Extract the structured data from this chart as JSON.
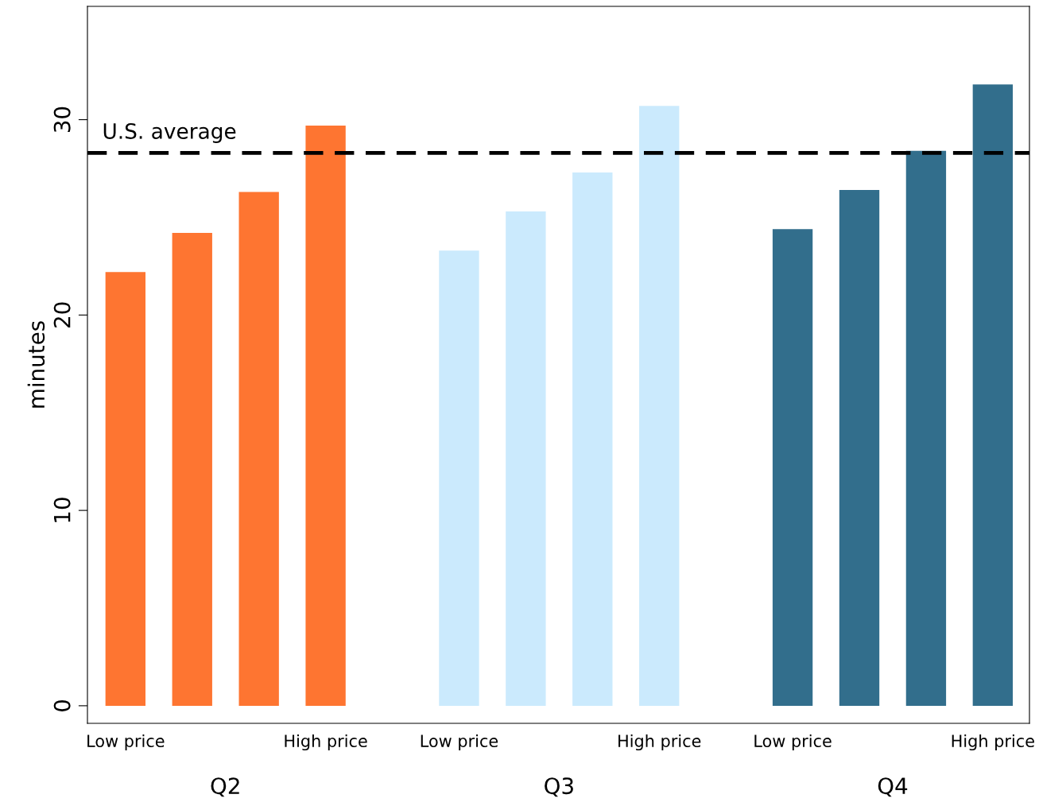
{
  "chart_data": {
    "type": "bar",
    "ylabel": "minutes",
    "categories": [
      "Low price",
      null,
      null,
      "High price",
      null,
      "Low price",
      null,
      null,
      "High price",
      null,
      "Low price",
      null,
      null,
      "High price"
    ],
    "series": [
      {
        "color": "#fe7531",
        "values": [
          22.2,
          24.2,
          26.3,
          29.7,
          null,
          null,
          null,
          null,
          null,
          null,
          null,
          null,
          null,
          null
        ]
      },
      {
        "color": "#cbeafd",
        "values": [
          null,
          null,
          null,
          null,
          null,
          23.3,
          25.3,
          27.3,
          30.7,
          null,
          null,
          null,
          null,
          null
        ]
      },
      {
        "color": "#326e8c",
        "values": [
          null,
          null,
          null,
          null,
          null,
          null,
          null,
          null,
          null,
          null,
          24.4,
          26.4,
          28.4,
          31.8
        ]
      }
    ],
    "ylim": [
      -0.9,
      35.8
    ],
    "yticks": [
      0,
      10,
      20,
      30
    ],
    "ref_lines": [
      {
        "axis": "y",
        "value": 28.3,
        "label": "U.S. average",
        "color": "#000000",
        "line_style": "dashed"
      }
    ],
    "annotations": [
      "Q2",
      "Q3",
      "Q4"
    ],
    "grid": false,
    "legend": false
  }
}
